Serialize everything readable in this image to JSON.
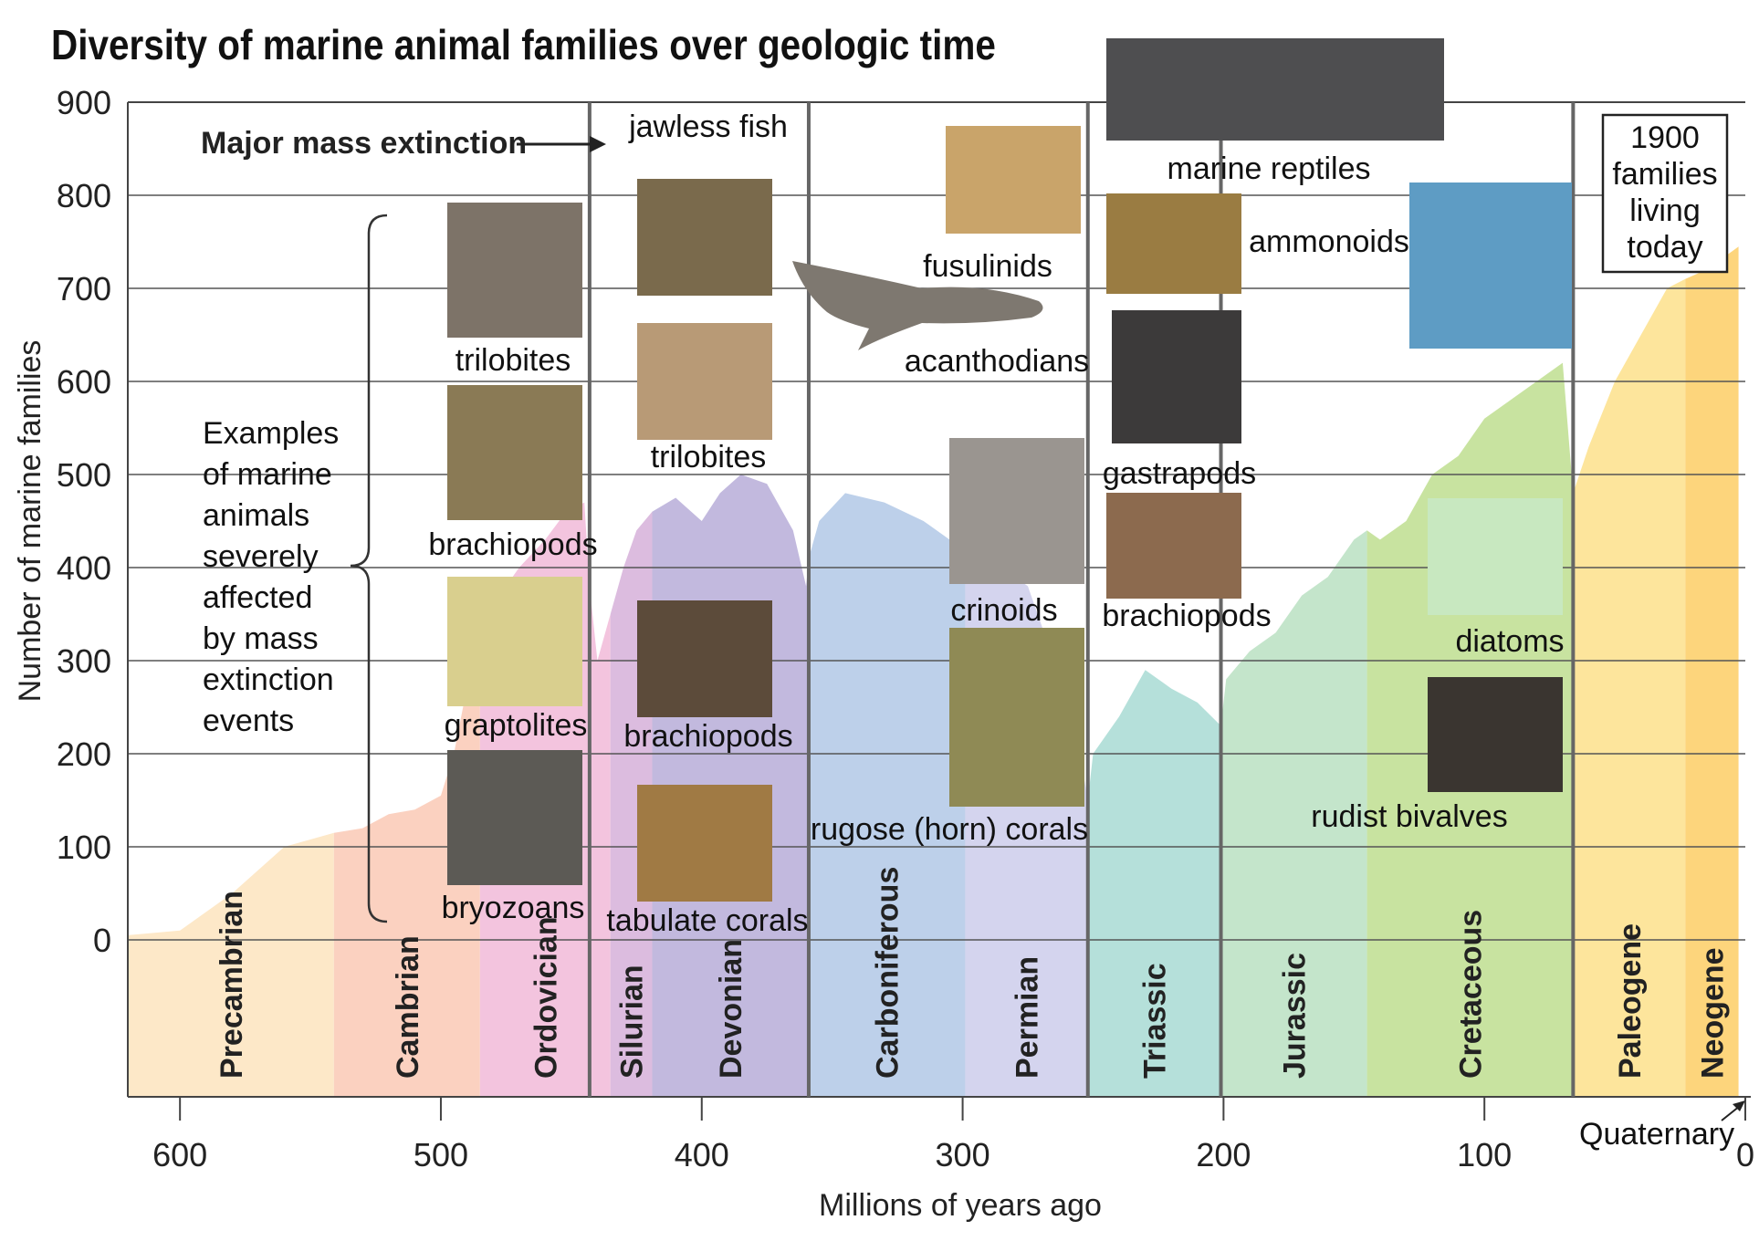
{
  "chart_data": {
    "type": "area",
    "title": "Diversity of marine animal families over geologic time",
    "xlabel": "Millions of years ago",
    "ylabel": "Number of marine families",
    "xlim": [
      620,
      0
    ],
    "ylim": [
      0,
      900
    ],
    "x_ticks": [
      600,
      500,
      400,
      300,
      200,
      100,
      0
    ],
    "y_ticks": [
      0,
      100,
      200,
      300,
      400,
      500,
      600,
      700,
      800,
      900
    ],
    "grid": true,
    "series": [
      {
        "values_x": [
          620,
          600,
          580,
          560,
          541,
          530,
          520,
          510,
          500,
          495,
          488,
          480,
          470,
          460,
          452,
          445,
          443,
          440,
          435,
          430,
          425,
          419,
          410,
          400,
          393,
          385,
          375,
          365,
          360,
          359,
          355,
          345,
          330,
          315,
          305,
          299,
          290,
          275,
          265,
          255,
          252,
          250,
          240,
          230,
          220,
          210,
          201,
          199,
          190,
          180,
          170,
          160,
          150,
          145,
          140,
          135,
          130,
          120,
          110,
          100,
          90,
          80,
          70,
          66,
          60,
          50,
          40,
          30,
          23,
          15,
          5,
          0
        ],
        "values_y": [
          5,
          10,
          50,
          100,
          115,
          120,
          135,
          140,
          155,
          200,
          300,
          360,
          400,
          430,
          460,
          470,
          380,
          300,
          350,
          400,
          440,
          460,
          475,
          450,
          480,
          500,
          490,
          440,
          380,
          410,
          450,
          480,
          470,
          450,
          430,
          420,
          410,
          380,
          300,
          200,
          150,
          200,
          240,
          290,
          270,
          255,
          230,
          280,
          310,
          330,
          370,
          390,
          430,
          440,
          430,
          440,
          450,
          500,
          520,
          560,
          580,
          600,
          620,
          480,
          530,
          600,
          650,
          700,
          710,
          720,
          740,
          750
        ]
      }
    ],
    "periods": [
      {
        "name": "Precambrian",
        "start": 620,
        "end": 541,
        "color": "#fde8c8"
      },
      {
        "name": "Cambrian",
        "start": 541,
        "end": 485,
        "color": "#fbd1c0"
      },
      {
        "name": "Ordovician",
        "start": 485,
        "end": 435,
        "color": "#f3c4de"
      },
      {
        "name": "Silurian",
        "start": 435,
        "end": 419,
        "color": "#dcbcdf"
      },
      {
        "name": "Devonian",
        "start": 419,
        "end": 359,
        "color": "#c2b9de"
      },
      {
        "name": "Carboniferous",
        "start": 359,
        "end": 299,
        "color": "#bdd0ea"
      },
      {
        "name": "Permian",
        "start": 299,
        "end": 252,
        "color": "#d4d4ee"
      },
      {
        "name": "Triassic",
        "start": 252,
        "end": 201,
        "color": "#b5e0da"
      },
      {
        "name": "Jurassic",
        "start": 201,
        "end": 145,
        "color": "#c4e5cb"
      },
      {
        "name": "Cretaceous",
        "start": 145,
        "end": 66,
        "color": "#c8e3a0"
      },
      {
        "name": "Paleogene",
        "start": 66,
        "end": 23,
        "color": "#fde59c"
      },
      {
        "name": "Neogene",
        "start": 23,
        "end": 2.6,
        "color": "#fdd57c"
      }
    ],
    "mass_extinction_lines": [
      443,
      359,
      252,
      201,
      66
    ],
    "annotations": {
      "mass_extinction": "Major mass extinction",
      "examples": [
        "Examples",
        "of marine",
        "animals",
        "severely",
        "affected",
        "by mass",
        "extinction",
        "events"
      ],
      "living_today": [
        "1900",
        "families",
        "living",
        "today"
      ],
      "quaternary": "Quaternary"
    },
    "animal_labels": [
      {
        "group": "Ordovician",
        "label": "trilobites"
      },
      {
        "group": "Ordovician",
        "label": "brachiopods"
      },
      {
        "group": "Ordovician",
        "label": "graptolites"
      },
      {
        "group": "Ordovician",
        "label": "bryozoans"
      },
      {
        "group": "Devonian",
        "label": "jawless fish"
      },
      {
        "group": "Devonian",
        "label": "trilobites"
      },
      {
        "group": "Devonian",
        "label": "brachiopods"
      },
      {
        "group": "Devonian",
        "label": "tabulate corals"
      },
      {
        "group": "Permian",
        "label": "fusulinids"
      },
      {
        "group": "Permian",
        "label": "acanthodians"
      },
      {
        "group": "Permian",
        "label": "crinoids"
      },
      {
        "group": "Permian",
        "label": "rugose (horn) corals"
      },
      {
        "group": "Triassic",
        "label": "marine reptiles"
      },
      {
        "group": "Triassic",
        "label": "ammonoids"
      },
      {
        "group": "Triassic",
        "label": "gastrapods"
      },
      {
        "group": "Triassic",
        "label": "brachiopods"
      },
      {
        "group": "Cretaceous",
        "label": "diatoms"
      },
      {
        "group": "Cretaceous",
        "label": "rudist bivalves"
      }
    ]
  }
}
